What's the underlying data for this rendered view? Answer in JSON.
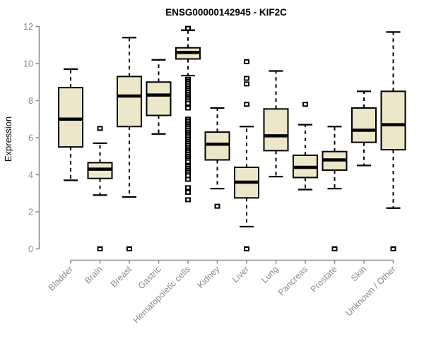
{
  "title": "ENSG00000142945 - KIF2C",
  "y_axis": {
    "label": "Expression",
    "ticks": [
      "0",
      "2",
      "4",
      "6",
      "8",
      "10",
      "12"
    ],
    "tick_values": [
      0,
      2,
      4,
      6,
      8,
      10,
      12
    ],
    "range": [
      0,
      12
    ]
  },
  "chart_data": {
    "type": "boxplot",
    "title": "ENSG00000142945 - KIF2C",
    "xlabel": "",
    "ylabel": "Expression",
    "ylim": [
      0,
      12
    ],
    "yticks": [
      0,
      2,
      4,
      6,
      8,
      10,
      12
    ],
    "grid": false,
    "legend": "none",
    "categories": [
      "Bladder",
      "Brain",
      "Breast",
      "Gastric",
      "Hematopoietic cells",
      "Kidney",
      "Liver",
      "Lung",
      "Pancreas",
      "Prostate",
      "Skin",
      "Unknown / Other"
    ],
    "series": [
      {
        "name": "Bladder",
        "low": 3.7,
        "q1": 5.5,
        "median": 7.0,
        "q3": 8.7,
        "high": 9.7,
        "outliers": []
      },
      {
        "name": "Brain",
        "low": 2.9,
        "q1": 3.8,
        "median": 4.3,
        "q3": 4.65,
        "high": 5.7,
        "outliers": [
          6.5,
          0
        ]
      },
      {
        "name": "Breast",
        "low": 2.8,
        "q1": 6.6,
        "median": 8.25,
        "q3": 9.3,
        "high": 11.4,
        "outliers": [
          0
        ]
      },
      {
        "name": "Gastric",
        "low": 6.2,
        "q1": 7.2,
        "median": 8.3,
        "q3": 9.0,
        "high": 10.2,
        "outliers": []
      },
      {
        "name": "Hematopoietic cells",
        "low": 9.35,
        "q1": 10.25,
        "median": 10.6,
        "q3": 10.85,
        "high": 11.8,
        "outliers": [
          11.9,
          9.15,
          9.05,
          8.95,
          8.85,
          8.75,
          8.65,
          8.55,
          8.45,
          8.35,
          8.25,
          8.15,
          8.05,
          7.95,
          7.85,
          7.6,
          7.0,
          6.9,
          6.8,
          6.7,
          6.6,
          6.5,
          6.4,
          6.3,
          6.2,
          6.1,
          6.0,
          5.9,
          5.8,
          5.7,
          5.6,
          5.5,
          5.4,
          5.3,
          5.2,
          5.1,
          5.0,
          4.9,
          4.8,
          4.7,
          4.45,
          4.35,
          4.25,
          4.15,
          4.05,
          3.95,
          3.75,
          3.3,
          3.05,
          2.65
        ]
      },
      {
        "name": "Kidney",
        "low": 3.25,
        "q1": 4.8,
        "median": 5.65,
        "q3": 6.3,
        "high": 7.6,
        "outliers": [
          2.3
        ]
      },
      {
        "name": "Liver",
        "low": 1.2,
        "q1": 2.75,
        "median": 3.6,
        "q3": 4.4,
        "high": 6.6,
        "outliers": [
          10.1,
          9.2,
          8.9,
          7.8,
          0
        ]
      },
      {
        "name": "Lung",
        "low": 3.9,
        "q1": 5.3,
        "median": 6.1,
        "q3": 7.55,
        "high": 9.6,
        "outliers": []
      },
      {
        "name": "Pancreas",
        "low": 3.2,
        "q1": 3.85,
        "median": 4.4,
        "q3": 5.05,
        "high": 6.7,
        "outliers": [
          7.8
        ]
      },
      {
        "name": "Prostate",
        "low": 3.25,
        "q1": 4.25,
        "median": 4.8,
        "q3": 5.25,
        "high": 6.6,
        "outliers": [
          0
        ]
      },
      {
        "name": "Skin",
        "low": 4.5,
        "q1": 5.75,
        "median": 6.4,
        "q3": 7.6,
        "high": 8.5,
        "outliers": []
      },
      {
        "name": "Unknown / Other",
        "low": 2.2,
        "q1": 5.35,
        "median": 6.7,
        "q3": 8.5,
        "high": 11.7,
        "outliers": [
          0
        ]
      }
    ],
    "colors": {
      "box_fill": "#ede7c9",
      "box_stroke": "#000000",
      "median": "#000000",
      "whisker": "#000000",
      "outlier_stroke": "#000000",
      "outlier_fill": "#ffffff",
      "axis_line": "#898989",
      "axis_text": "#8c8c8c",
      "title_color": "#000000",
      "background": "#ffffff"
    }
  }
}
